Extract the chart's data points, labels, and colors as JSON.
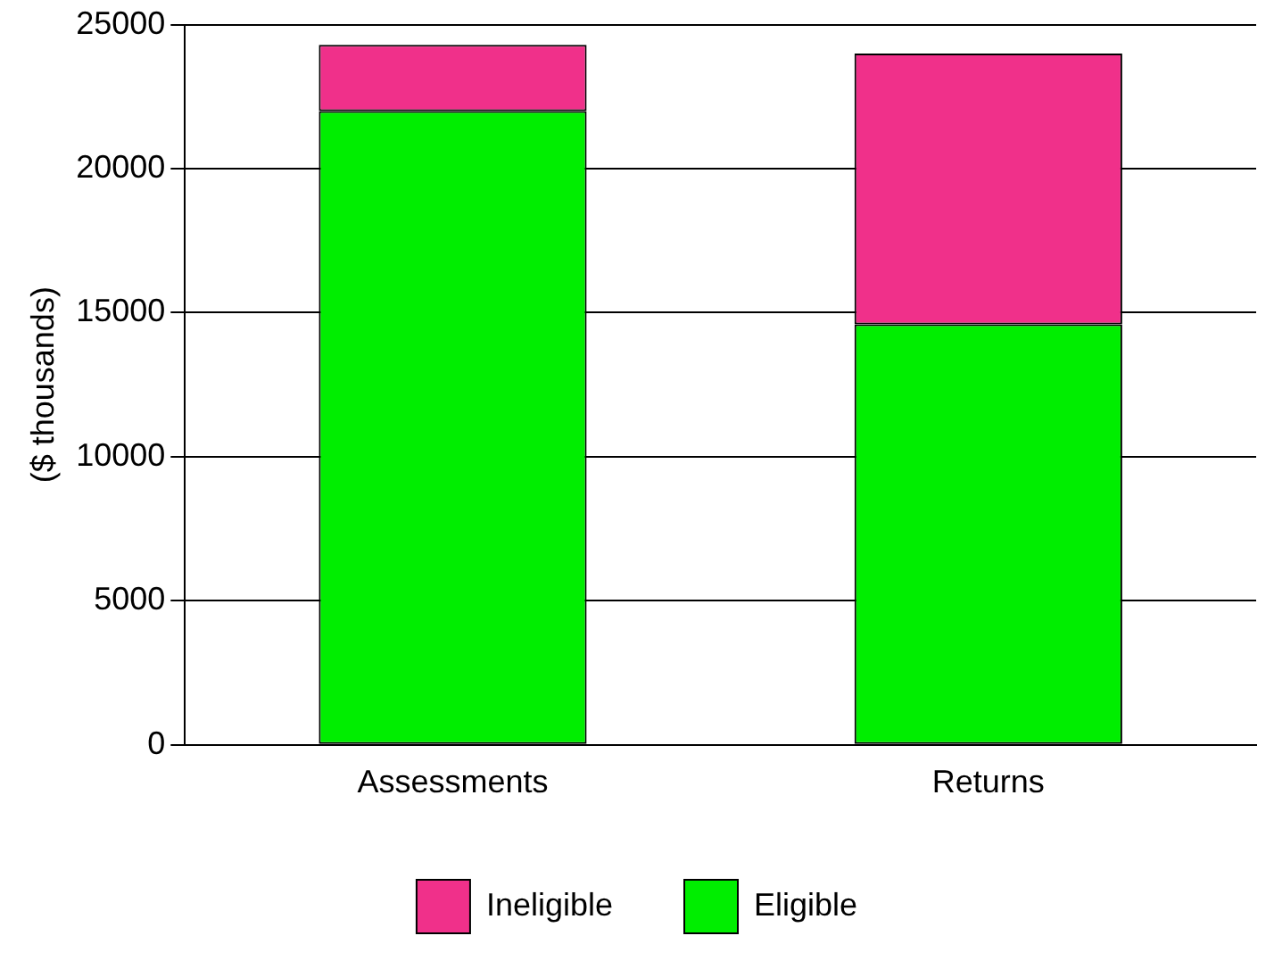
{
  "chart_data": {
    "type": "bar",
    "ylabel": "($ thousands)",
    "categories": [
      "Assessments",
      "Returns"
    ],
    "stacked": true,
    "series": [
      {
        "name": "Eligible",
        "color": "#00ee00",
        "values": [
          22000,
          14600
        ]
      },
      {
        "name": "Ineligible",
        "color": "#f0308a",
        "values": [
          2300,
          9400
        ]
      }
    ],
    "ylim": [
      0,
      25000
    ],
    "yticks": [
      0,
      5000,
      10000,
      15000,
      20000,
      25000
    ],
    "grid": "y",
    "legend": "bottom"
  }
}
